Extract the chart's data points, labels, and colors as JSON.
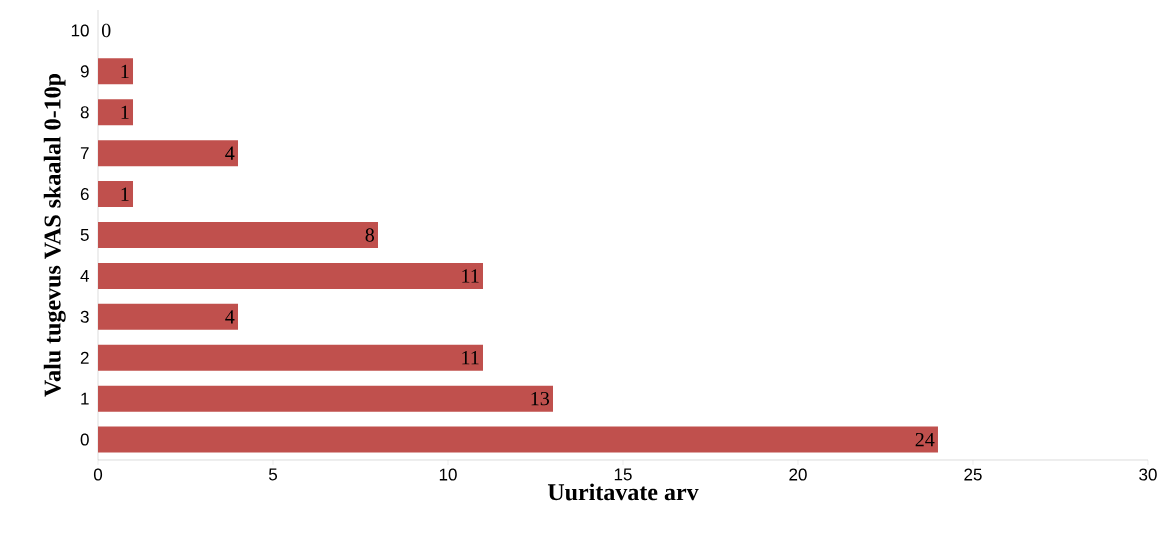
{
  "chart_data": {
    "type": "bar",
    "orientation": "horizontal",
    "categories": [
      "10",
      "9",
      "8",
      "7",
      "6",
      "5",
      "4",
      "3",
      "2",
      "1",
      "0"
    ],
    "values": [
      0,
      1,
      1,
      4,
      1,
      8,
      11,
      4,
      11,
      13,
      24
    ],
    "color": "#c0504d",
    "xlim": [
      0,
      30
    ],
    "xticks": [
      0,
      5,
      10,
      15,
      20,
      25,
      30
    ],
    "xlabel": "Uuritavate arv",
    "ylabel": "Valu tugevus VAS skaalal 0-10p",
    "data_labels": true
  }
}
